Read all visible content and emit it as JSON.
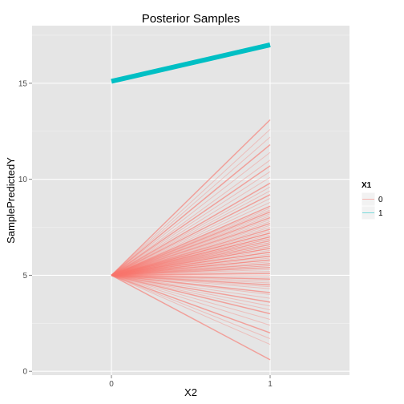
{
  "chart_data": {
    "type": "line",
    "title": "Posterior Samples",
    "xlabel": "X2",
    "ylabel": "SamplePredictedY",
    "x": [
      0,
      1
    ],
    "x_ticks": [
      "0",
      "1"
    ],
    "xlim": [
      -0.5,
      1.5
    ],
    "y_ticks": [
      "0",
      "5",
      "10",
      "15"
    ],
    "ylim": [
      -0.2,
      18.0
    ],
    "grid": true,
    "legend": {
      "title": "X1",
      "position": "right",
      "entries": [
        {
          "label": "0",
          "color": "#F8766D"
        },
        {
          "label": "1",
          "color": "#00BFC4"
        }
      ]
    },
    "series": [
      {
        "name": "1",
        "color": "#00BFC4",
        "values": [
          15.1,
          17.0
        ],
        "thick": true
      },
      {
        "name": "0",
        "color": "#F8766D",
        "start": 5.0,
        "end_values_at_x1": [
          0.6,
          1.4,
          1.7,
          2.0,
          2.4,
          2.7,
          3.0,
          3.2,
          3.4,
          3.6,
          3.8,
          4.0,
          4.1,
          4.3,
          4.4,
          4.5,
          4.6,
          4.7,
          4.8,
          4.9,
          5.0,
          5.1,
          5.2,
          5.3,
          5.4,
          5.5,
          5.5,
          5.6,
          5.7,
          5.8,
          5.8,
          5.9,
          6.0,
          6.0,
          6.1,
          6.2,
          6.2,
          6.3,
          6.4,
          6.4,
          6.5,
          6.5,
          6.6,
          6.7,
          6.7,
          6.8,
          6.9,
          6.9,
          7.0,
          7.0,
          7.1,
          7.2,
          7.2,
          7.3,
          7.4,
          7.5,
          7.6,
          7.7,
          7.8,
          7.9,
          8.0,
          8.1,
          8.2,
          8.3,
          8.4,
          8.5,
          8.6,
          8.8,
          9.0,
          9.2,
          9.4,
          9.6,
          9.8,
          10.1,
          10.4,
          10.7,
          11.0,
          11.4,
          11.8,
          12.2,
          12.6,
          13.1
        ]
      }
    ]
  }
}
